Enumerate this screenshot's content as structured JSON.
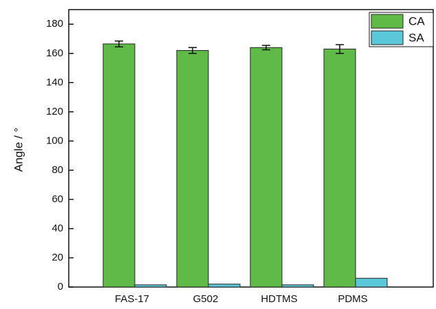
{
  "chart_data": {
    "type": "bar",
    "y_label": "Angle / °",
    "categories": [
      "FAS-17",
      "G502",
      "HDTMS",
      "PDMS"
    ],
    "series": [
      {
        "name": "CA",
        "color": "#5fba47",
        "values": [
          166.5,
          162,
          164,
          163
        ],
        "errors": [
          2,
          2,
          1.5,
          3
        ]
      },
      {
        "name": "SA",
        "color": "#5ac8d8",
        "values": [
          1.5,
          2,
          1.5,
          6
        ]
      }
    ],
    "ylim": [
      0,
      190
    ],
    "yticks": [
      0,
      20,
      40,
      60,
      80,
      100,
      120,
      140,
      160,
      180
    ],
    "legend": "top-right"
  }
}
